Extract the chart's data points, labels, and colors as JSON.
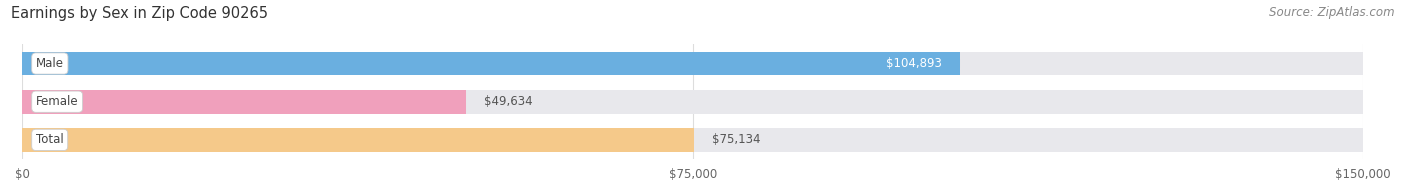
{
  "title": "Earnings by Sex in Zip Code 90265",
  "source": "Source: ZipAtlas.com",
  "categories": [
    "Male",
    "Female",
    "Total"
  ],
  "values": [
    104893,
    49634,
    75134
  ],
  "bar_colors": [
    "#6aafe0",
    "#f0a0bc",
    "#f5c98a"
  ],
  "track_color": "#e8e8ec",
  "label_text_color": "#444444",
  "bar_label_colors": [
    "#ffffff",
    "#555555",
    "#555555"
  ],
  "xlim": [
    0,
    150000
  ],
  "xticks": [
    0,
    75000,
    150000
  ],
  "xtick_labels": [
    "$0",
    "$75,000",
    "$150,000"
  ],
  "title_fontsize": 10.5,
  "source_fontsize": 8.5,
  "bar_height": 0.62,
  "figsize": [
    14.06,
    1.96
  ],
  "dpi": 100
}
